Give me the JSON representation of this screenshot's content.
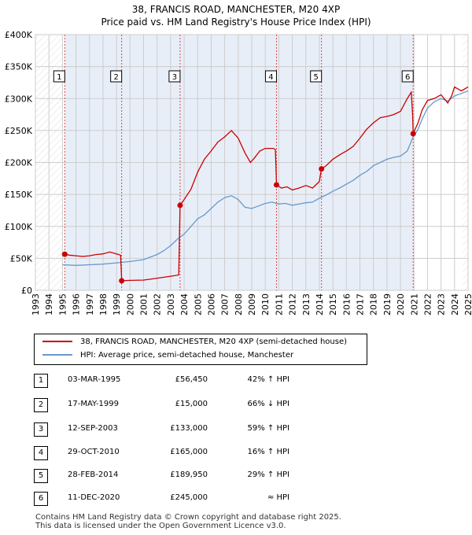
{
  "title": {
    "line1": "38, FRANCIS ROAD, MANCHESTER, M20 4XP",
    "line2": "Price paid vs. HM Land Registry's House Price Index (HPI)"
  },
  "colors": {
    "property": "#cc0000",
    "hpi": "#6699cc",
    "shade": "#e8eef8",
    "grid": "#cccccc",
    "marker_line": "#dd4444"
  },
  "chart_data": {
    "type": "line",
    "title": "38, FRANCIS ROAD, MANCHESTER, M20 4XP",
    "subtitle": "Price paid vs. HM Land Registry's House Price Index (HPI)",
    "xlim": [
      1993,
      2025
    ],
    "ylim": [
      0,
      400000
    ],
    "y_ticks": [
      {
        "value": 0,
        "label": "£0"
      },
      {
        "value": 50000,
        "label": "£50K"
      },
      {
        "value": 100000,
        "label": "£100K"
      },
      {
        "value": 150000,
        "label": "£150K"
      },
      {
        "value": 200000,
        "label": "£200K"
      },
      {
        "value": 250000,
        "label": "£250K"
      },
      {
        "value": 300000,
        "label": "£300K"
      },
      {
        "value": 350000,
        "label": "£350K"
      },
      {
        "value": 400000,
        "label": "£400K"
      }
    ],
    "x_ticks": [
      "1993",
      "1994",
      "1995",
      "1996",
      "1997",
      "1998",
      "1999",
      "2000",
      "2001",
      "2002",
      "2003",
      "2004",
      "2005",
      "2006",
      "2007",
      "2008",
      "2009",
      "2010",
      "2011",
      "2012",
      "2013",
      "2014",
      "2015",
      "2016",
      "2017",
      "2018",
      "2019",
      "2020",
      "2021",
      "2022",
      "2023",
      "2024",
      "2025"
    ],
    "grid": true,
    "shaded_ranges": [
      [
        1995.17,
        2020.94
      ]
    ],
    "series": [
      {
        "name": "38, FRANCIS ROAD, MANCHESTER, M20 4XP (semi-detached house)",
        "color": "#cc0000",
        "points": [
          [
            1995.17,
            56450
          ],
          [
            1995.5,
            55000
          ],
          [
            1996,
            54000
          ],
          [
            1996.5,
            53000
          ],
          [
            1997,
            54000
          ],
          [
            1997.5,
            56000
          ],
          [
            1998,
            57000
          ],
          [
            1998.5,
            60000
          ],
          [
            1999,
            57000
          ],
          [
            1999.3,
            55000
          ],
          [
            1999.38,
            15000
          ],
          [
            2000,
            15500
          ],
          [
            2001,
            16000
          ],
          [
            2002,
            19000
          ],
          [
            2003,
            22000
          ],
          [
            2003.6,
            24000
          ],
          [
            2003.7,
            133000
          ],
          [
            2004,
            142000
          ],
          [
            2004.5,
            158000
          ],
          [
            2005,
            185000
          ],
          [
            2005.5,
            205000
          ],
          [
            2006,
            218000
          ],
          [
            2006.5,
            232000
          ],
          [
            2007,
            240000
          ],
          [
            2007.5,
            250000
          ],
          [
            2008,
            238000
          ],
          [
            2008.5,
            215000
          ],
          [
            2008.9,
            200000
          ],
          [
            2009.2,
            207000
          ],
          [
            2009.6,
            218000
          ],
          [
            2010,
            222000
          ],
          [
            2010.6,
            222000
          ],
          [
            2010.75,
            220000
          ],
          [
            2010.83,
            165000
          ],
          [
            2011.2,
            160000
          ],
          [
            2011.6,
            162000
          ],
          [
            2012,
            157000
          ],
          [
            2012.5,
            160000
          ],
          [
            2013,
            164000
          ],
          [
            2013.5,
            160000
          ],
          [
            2014,
            170000
          ],
          [
            2014.16,
            189950
          ],
          [
            2014.5,
            195000
          ],
          [
            2015,
            205000
          ],
          [
            2015.5,
            212000
          ],
          [
            2016,
            218000
          ],
          [
            2016.5,
            225000
          ],
          [
            2017,
            238000
          ],
          [
            2017.5,
            252000
          ],
          [
            2018,
            262000
          ],
          [
            2018.5,
            270000
          ],
          [
            2019,
            272000
          ],
          [
            2019.5,
            275000
          ],
          [
            2020,
            280000
          ],
          [
            2020.5,
            300000
          ],
          [
            2020.8,
            310000
          ],
          [
            2020.9,
            275000
          ],
          [
            2020.94,
            245000
          ],
          [
            2021.3,
            262000
          ],
          [
            2021.6,
            282000
          ],
          [
            2022,
            297000
          ],
          [
            2022.5,
            300000
          ],
          [
            2023,
            306000
          ],
          [
            2023.5,
            293000
          ],
          [
            2023.8,
            305000
          ],
          [
            2024,
            318000
          ],
          [
            2024.5,
            312000
          ],
          [
            2025,
            318000
          ]
        ]
      },
      {
        "name": "HPI: Average price, semi-detached house, Manchester",
        "color": "#6699cc",
        "points": [
          [
            1995,
            40000
          ],
          [
            1996,
            39000
          ],
          [
            1997,
            40000
          ],
          [
            1998,
            41000
          ],
          [
            1999,
            43000
          ],
          [
            2000,
            45000
          ],
          [
            2001,
            48000
          ],
          [
            2002,
            56000
          ],
          [
            2002.5,
            62000
          ],
          [
            2003,
            70000
          ],
          [
            2003.5,
            80000
          ],
          [
            2004,
            88000
          ],
          [
            2004.5,
            100000
          ],
          [
            2005,
            112000
          ],
          [
            2005.5,
            118000
          ],
          [
            2006,
            128000
          ],
          [
            2006.5,
            138000
          ],
          [
            2007,
            145000
          ],
          [
            2007.5,
            148000
          ],
          [
            2008,
            142000
          ],
          [
            2008.5,
            130000
          ],
          [
            2009,
            128000
          ],
          [
            2009.5,
            132000
          ],
          [
            2010,
            136000
          ],
          [
            2010.5,
            138000
          ],
          [
            2011,
            135000
          ],
          [
            2011.5,
            136000
          ],
          [
            2012,
            133000
          ],
          [
            2012.5,
            135000
          ],
          [
            2013,
            137000
          ],
          [
            2013.5,
            138000
          ],
          [
            2014,
            144000
          ],
          [
            2014.5,
            149000
          ],
          [
            2015,
            155000
          ],
          [
            2015.5,
            160000
          ],
          [
            2016,
            166000
          ],
          [
            2016.5,
            172000
          ],
          [
            2017,
            180000
          ],
          [
            2017.5,
            186000
          ],
          [
            2018,
            195000
          ],
          [
            2018.5,
            200000
          ],
          [
            2019,
            205000
          ],
          [
            2019.5,
            208000
          ],
          [
            2020,
            210000
          ],
          [
            2020.5,
            218000
          ],
          [
            2020.94,
            240000
          ],
          [
            2021.3,
            252000
          ],
          [
            2021.6,
            268000
          ],
          [
            2022,
            285000
          ],
          [
            2022.5,
            295000
          ],
          [
            2023,
            300000
          ],
          [
            2023.5,
            296000
          ],
          [
            2024,
            304000
          ],
          [
            2024.5,
            308000
          ],
          [
            2025,
            312000
          ]
        ]
      }
    ],
    "sales": [
      {
        "id": "1",
        "date": "03-MAR-1995",
        "x": 1995.17,
        "price_value": 56450,
        "price": "£56,450",
        "hpi": "42% ↑ HPI"
      },
      {
        "id": "2",
        "date": "17-MAY-1999",
        "x": 1999.38,
        "price_value": 15000,
        "price": "£15,000",
        "hpi": "66% ↓ HPI"
      },
      {
        "id": "3",
        "date": "12-SEP-2003",
        "x": 2003.7,
        "price_value": 133000,
        "price": "£133,000",
        "hpi": "59% ↑ HPI"
      },
      {
        "id": "4",
        "date": "29-OCT-2010",
        "x": 2010.83,
        "price_value": 165000,
        "price": "£165,000",
        "hpi": "16% ↑ HPI"
      },
      {
        "id": "5",
        "date": "28-FEB-2014",
        "x": 2014.16,
        "price_value": 189950,
        "price": "£189,950",
        "hpi": "29% ↑ HPI"
      },
      {
        "id": "6",
        "date": "11-DEC-2020",
        "x": 2020.94,
        "price_value": 245000,
        "price": "£245,000",
        "hpi": "≈ HPI"
      }
    ]
  },
  "legend": {
    "property_label": "38, FRANCIS ROAD, MANCHESTER, M20 4XP (semi-detached house)",
    "hpi_label": "HPI: Average price, semi-detached house, Manchester"
  },
  "footer": {
    "line1": "Contains HM Land Registry data © Crown copyright and database right 2025.",
    "line2": "This data is licensed under the Open Government Licence v3.0."
  }
}
